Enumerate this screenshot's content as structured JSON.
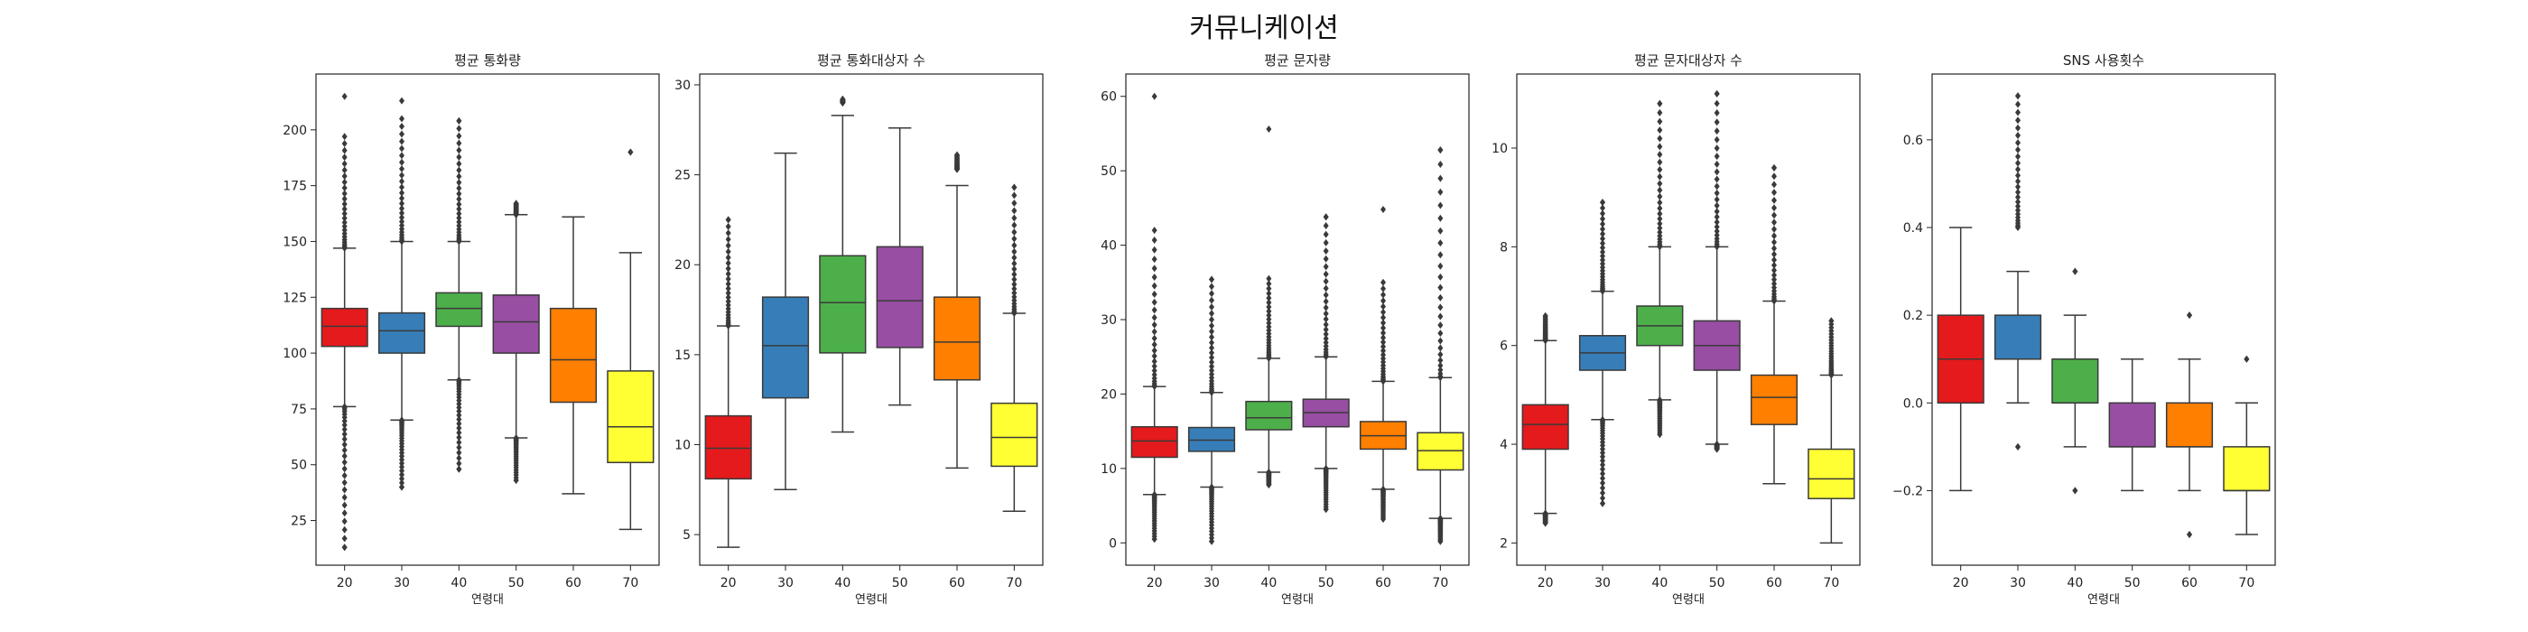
{
  "suptitle": "커뮤니케이션",
  "colors": {
    "20": "#e41a1c",
    "30": "#377eb8",
    "40": "#4daf4a",
    "50": "#984ea3",
    "60": "#ff7f00",
    "70": "#ffff33",
    "outlier": "#3a3a3a",
    "line": "#3a3a3a"
  },
  "chart_data": [
    {
      "type": "box",
      "title": "평균 통화량",
      "xlabel": "연령대",
      "ylabel": "",
      "categories": [
        "20",
        "30",
        "40",
        "50",
        "60",
        "70"
      ],
      "ylim": [
        5,
        225
      ],
      "yticks": [
        25,
        50,
        75,
        100,
        125,
        150,
        175,
        200
      ],
      "boxes": [
        {
          "q1": 103,
          "median": 112,
          "q3": 120,
          "whislo": 76,
          "whishi": 147
        },
        {
          "q1": 100,
          "median": 110,
          "q3": 118,
          "whislo": 70,
          "whishi": 150
        },
        {
          "q1": 112,
          "median": 120,
          "q3": 127,
          "whislo": 88,
          "whishi": 150
        },
        {
          "q1": 100,
          "median": 114,
          "q3": 126,
          "whislo": 62,
          "whishi": 162
        },
        {
          "q1": 78,
          "median": 97,
          "q3": 120,
          "whislo": 37,
          "whishi": 161
        },
        {
          "q1": 51,
          "median": 67,
          "q3": 92,
          "whislo": 21,
          "whishi": 145
        }
      ],
      "outliers": [
        {
          "low": 13,
          "high": 215,
          "low_range": [
            13,
            76
          ],
          "high_range": [
            147,
            197
          ]
        },
        {
          "low": 40,
          "high": 213,
          "low_range": [
            40,
            70
          ],
          "high_range": [
            150,
            205
          ]
        },
        {
          "low": 48,
          "high": 204,
          "low_range": [
            48,
            88
          ],
          "high_range": [
            150,
            204
          ]
        },
        {
          "low": 43,
          "high": 167,
          "low_range": [
            43,
            62
          ],
          "high_range": [
            162,
            167
          ]
        },
        {
          "low": null,
          "high": null,
          "low_range": null,
          "high_range": null
        },
        {
          "low": null,
          "high": 190,
          "low_range": null,
          "high_range": [
            190,
            190
          ]
        }
      ]
    },
    {
      "type": "box",
      "title": "평균 통화대상자 수",
      "xlabel": "연령대",
      "ylabel": "",
      "categories": [
        "20",
        "30",
        "40",
        "50",
        "60",
        "70"
      ],
      "ylim": [
        3.3,
        30.6
      ],
      "yticks": [
        5,
        10,
        15,
        20,
        25,
        30
      ],
      "boxes": [
        {
          "q1": 8.1,
          "median": 9.8,
          "q3": 11.6,
          "whislo": 4.3,
          "whishi": 16.6
        },
        {
          "q1": 12.6,
          "median": 15.5,
          "q3": 18.2,
          "whislo": 7.5,
          "whishi": 26.2
        },
        {
          "q1": 15.1,
          "median": 17.9,
          "q3": 20.5,
          "whislo": 10.7,
          "whishi": 28.3
        },
        {
          "q1": 15.4,
          "median": 18.0,
          "q3": 21.0,
          "whislo": 12.2,
          "whishi": 27.6
        },
        {
          "q1": 13.6,
          "median": 15.7,
          "q3": 18.2,
          "whislo": 8.7,
          "whishi": 24.4
        },
        {
          "q1": 8.8,
          "median": 10.4,
          "q3": 12.3,
          "whislo": 6.3,
          "whishi": 17.3
        }
      ],
      "outliers": [
        {
          "low": null,
          "high": 22.5,
          "low_range": null,
          "high_range": [
            16.6,
            22.5
          ]
        },
        {
          "low": null,
          "high": null,
          "low_range": null,
          "high_range": null
        },
        {
          "low": null,
          "high": 29.2,
          "low_range": null,
          "high_range": [
            29.0,
            29.2
          ]
        },
        {
          "low": null,
          "high": null,
          "low_range": null,
          "high_range": null
        },
        {
          "low": null,
          "high": 26.1,
          "low_range": null,
          "high_range": [
            25.3,
            26.1
          ]
        },
        {
          "low": null,
          "high": 24.3,
          "low_range": null,
          "high_range": [
            17.3,
            24.3
          ]
        }
      ]
    },
    {
      "type": "box",
      "title": "평균 문자량",
      "xlabel": "연령대",
      "ylabel": "",
      "categories": [
        "20",
        "30",
        "40",
        "50",
        "60",
        "70"
      ],
      "ylim": [
        -3,
        63
      ],
      "yticks": [
        0,
        10,
        20,
        30,
        40,
        50,
        60
      ],
      "boxes": [
        {
          "q1": 11.5,
          "median": 13.7,
          "q3": 15.6,
          "whislo": 6.5,
          "whishi": 21.0
        },
        {
          "q1": 12.3,
          "median": 13.8,
          "q3": 15.5,
          "whislo": 7.5,
          "whishi": 20.2
        },
        {
          "q1": 15.2,
          "median": 16.8,
          "q3": 19.0,
          "whislo": 9.5,
          "whishi": 24.8
        },
        {
          "q1": 15.6,
          "median": 17.5,
          "q3": 19.3,
          "whislo": 10.0,
          "whishi": 25.0
        },
        {
          "q1": 12.6,
          "median": 14.4,
          "q3": 16.3,
          "whislo": 7.2,
          "whishi": 21.7
        },
        {
          "q1": 9.8,
          "median": 12.4,
          "q3": 14.8,
          "whislo": 3.3,
          "whishi": 22.2
        }
      ],
      "outliers": [
        {
          "low": 0.5,
          "high": 60.0,
          "low_range": [
            0.5,
            6.5
          ],
          "high_range": [
            21.0,
            42.0
          ]
        },
        {
          "low": 0.2,
          "high": 35.4,
          "low_range": [
            0.2,
            7.5
          ],
          "high_range": [
            20.2,
            35.4
          ]
        },
        {
          "low": 7.8,
          "high": 55.6,
          "low_range": [
            7.8,
            9.5
          ],
          "high_range": [
            24.8,
            35.5
          ]
        },
        {
          "low": 4.5,
          "high": 43.8,
          "low_range": [
            4.5,
            10.0
          ],
          "high_range": [
            25.0,
            43.8
          ]
        },
        {
          "low": 3.2,
          "high": 44.8,
          "low_range": [
            3.2,
            7.2
          ],
          "high_range": [
            21.7,
            35.0
          ]
        },
        {
          "low": 0.2,
          "high": 52.8,
          "low_range": [
            0.2,
            3.3
          ],
          "high_range": [
            22.2,
            52.8
          ]
        }
      ]
    },
    {
      "type": "box",
      "title": "평균 문자대상자 수",
      "xlabel": "연령대",
      "ylabel": "",
      "categories": [
        "20",
        "30",
        "40",
        "50",
        "60",
        "70"
      ],
      "ylim": [
        1.55,
        11.5
      ],
      "yticks": [
        2,
        4,
        6,
        8,
        10
      ],
      "boxes": [
        {
          "q1": 3.9,
          "median": 4.4,
          "q3": 4.8,
          "whislo": 2.6,
          "whishi": 6.1
        },
        {
          "q1": 5.5,
          "median": 5.85,
          "q3": 6.2,
          "whislo": 4.5,
          "whishi": 7.1
        },
        {
          "q1": 6.0,
          "median": 6.4,
          "q3": 6.8,
          "whislo": 4.9,
          "whishi": 8.0
        },
        {
          "q1": 5.5,
          "median": 6.0,
          "q3": 6.5,
          "whislo": 4.0,
          "whishi": 8.0
        },
        {
          "q1": 4.4,
          "median": 4.95,
          "q3": 5.4,
          "whislo": 3.2,
          "whishi": 6.9
        },
        {
          "q1": 2.9,
          "median": 3.3,
          "q3": 3.9,
          "whislo": 2.0,
          "whishi": 5.4
        }
      ],
      "outliers": [
        {
          "low": 2.4,
          "high": 6.6,
          "low_range": [
            2.4,
            2.6
          ],
          "high_range": [
            6.1,
            6.6
          ]
        },
        {
          "low": 2.8,
          "high": 8.9,
          "low_range": [
            2.8,
            4.5
          ],
          "high_range": [
            7.1,
            8.9
          ]
        },
        {
          "low": 4.2,
          "high": 10.9,
          "low_range": [
            4.2,
            4.9
          ],
          "high_range": [
            8.0,
            10.9
          ]
        },
        {
          "low": 3.9,
          "high": 11.1,
          "low_range": [
            3.9,
            4.0
          ],
          "high_range": [
            8.0,
            11.1
          ]
        },
        {
          "low": null,
          "high": 9.6,
          "low_range": null,
          "high_range": [
            6.9,
            9.6
          ]
        },
        {
          "low": null,
          "high": 6.5,
          "low_range": null,
          "high_range": [
            5.4,
            6.5
          ]
        }
      ]
    },
    {
      "type": "box",
      "title": "SNS 사용횟수",
      "xlabel": "연령대",
      "ylabel": "",
      "categories": [
        "20",
        "30",
        "40",
        "50",
        "60",
        "70"
      ],
      "ylim": [
        -0.37,
        0.75
      ],
      "yticks": [
        -0.2,
        0.0,
        0.2,
        0.4,
        0.6
      ],
      "tick_format": "fixed1",
      "boxes": [
        {
          "q1": 0.0,
          "median": 0.1,
          "q3": 0.2,
          "whislo": -0.2,
          "whishi": 0.4
        },
        {
          "q1": 0.1,
          "median": 0.1,
          "q3": 0.2,
          "whislo": 0.0,
          "whishi": 0.3
        },
        {
          "q1": 0.0,
          "median": 0.0,
          "q3": 0.1,
          "whislo": -0.1,
          "whishi": 0.2
        },
        {
          "q1": -0.1,
          "median": -0.1,
          "q3": 0.0,
          "whislo": -0.2,
          "whishi": 0.1
        },
        {
          "q1": -0.1,
          "median": -0.1,
          "q3": 0.0,
          "whislo": -0.2,
          "whishi": 0.1
        },
        {
          "q1": -0.2,
          "median": -0.2,
          "q3": -0.1,
          "whislo": -0.3,
          "whishi": 0.0
        }
      ],
      "outliers": [
        {
          "low": null,
          "high": null,
          "low_range": null,
          "high_range": null
        },
        {
          "low": -0.1,
          "high": 0.7,
          "low_range": [
            -0.1,
            -0.1
          ],
          "high_range": [
            0.4,
            0.7
          ]
        },
        {
          "low": -0.2,
          "high": 0.3,
          "low_range": [
            -0.2,
            -0.2
          ],
          "high_range": [
            0.3,
            0.3
          ]
        },
        {
          "low": null,
          "high": null,
          "low_range": null,
          "high_range": null
        },
        {
          "low": -0.3,
          "high": 0.2,
          "low_range": [
            -0.3,
            -0.3
          ],
          "high_range": [
            0.2,
            0.2
          ]
        },
        {
          "low": null,
          "high": 0.1,
          "low_range": null,
          "high_range": [
            0.1,
            0.1
          ]
        }
      ]
    }
  ]
}
